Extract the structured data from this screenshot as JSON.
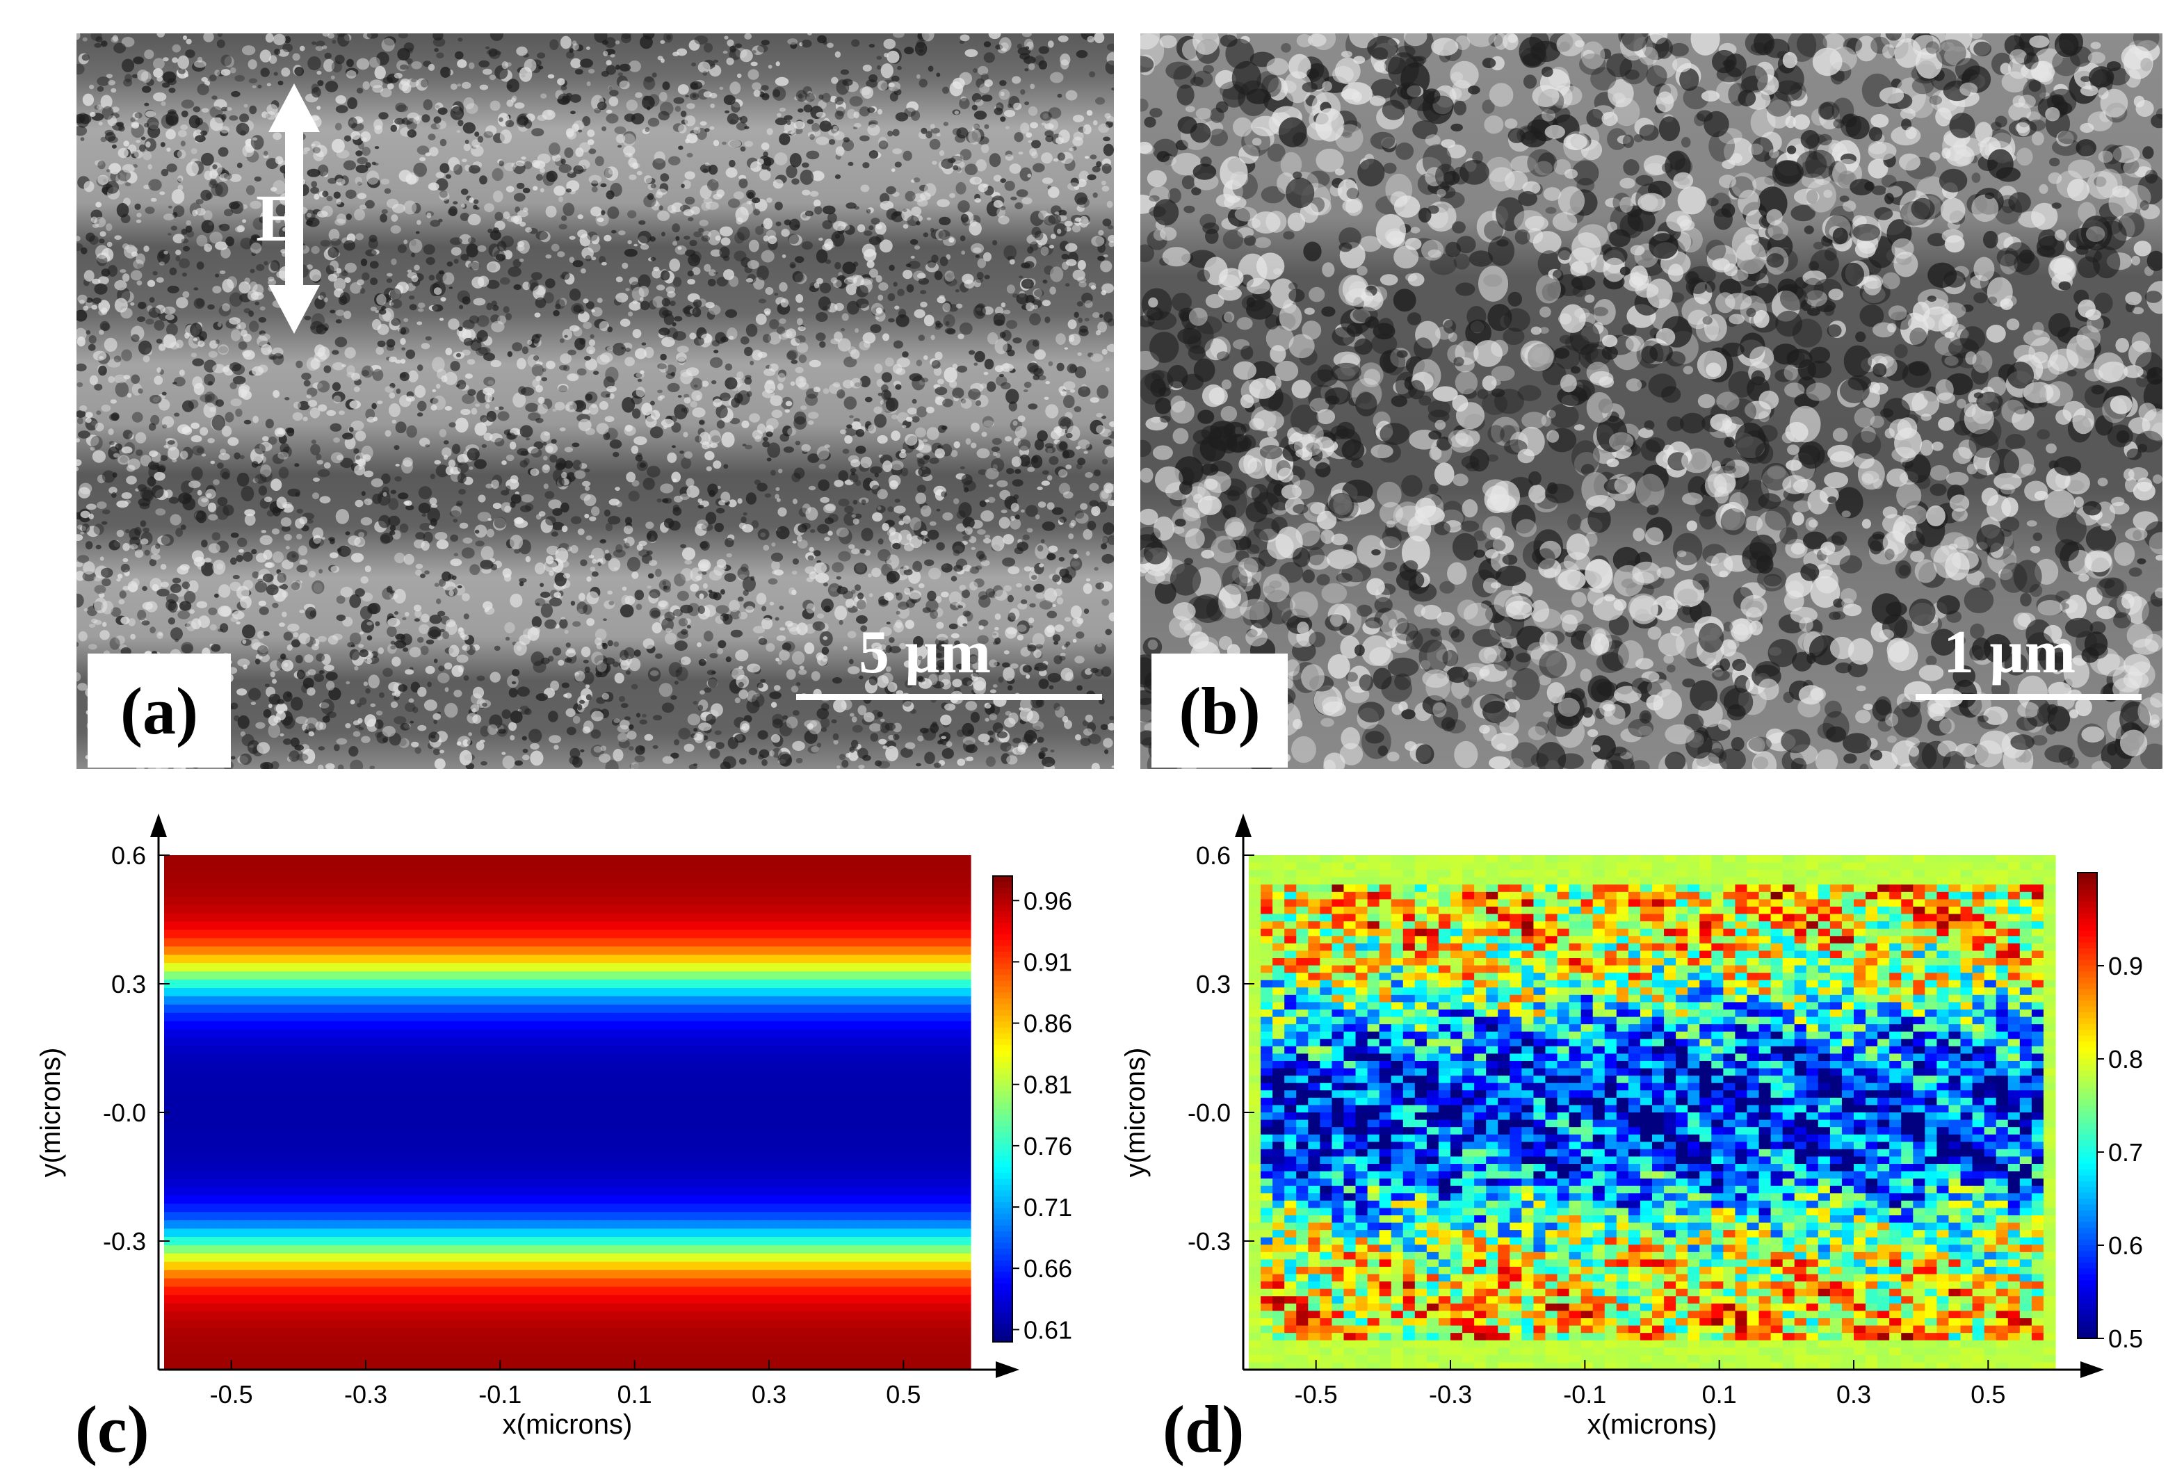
{
  "panels": {
    "a": {
      "label": "(a)",
      "scale_text": "5 µm",
      "field_label": "E"
    },
    "b": {
      "label": "(b)",
      "scale_text": "1 µm"
    },
    "c": {
      "label": "(c)"
    },
    "d": {
      "label": "(d)"
    }
  },
  "chart_data": [
    {
      "type": "heatmap",
      "panel": "c",
      "xlabel": "x(microns)",
      "ylabel": "y(microns)",
      "xlim": [
        -0.6,
        0.6
      ],
      "ylim": [
        -0.6,
        0.6
      ],
      "x_ticks": [
        "-0.5",
        "-0.3",
        "-0.1",
        "0.1",
        "0.3",
        "0.5"
      ],
      "x_tick_values": [
        -0.5,
        -0.3,
        -0.1,
        0.1,
        0.3,
        0.5
      ],
      "y_ticks": [
        "0.6",
        "0.3",
        "-0.0",
        "-0.3"
      ],
      "y_tick_values": [
        0.6,
        0.3,
        0.0,
        -0.3
      ],
      "colorbar_ticks": [
        "0.96",
        "0.91",
        "0.86",
        "0.81",
        "0.76",
        "0.71",
        "0.66",
        "0.61"
      ],
      "colorbar_tick_values": [
        0.96,
        0.91,
        0.86,
        0.81,
        0.76,
        0.71,
        0.66,
        0.61
      ],
      "value_range": [
        0.6,
        0.98
      ],
      "colormap": "jet",
      "description_profile": "high (~0.96) near y=±0.6, low (~0.61) around y=0, varies only along y"
    },
    {
      "type": "heatmap",
      "panel": "d",
      "xlabel": "x(microns)",
      "ylabel": "y(microns)",
      "xlim": [
        -0.6,
        0.6
      ],
      "ylim": [
        -0.6,
        0.6
      ],
      "x_ticks": [
        "-0.5",
        "-0.3",
        "-0.1",
        "0.1",
        "0.3",
        "0.5"
      ],
      "x_tick_values": [
        -0.5,
        -0.3,
        -0.1,
        0.1,
        0.3,
        0.5
      ],
      "y_ticks": [
        "0.6",
        "0.3",
        "-0.0",
        "-0.3"
      ],
      "y_tick_values": [
        0.6,
        0.3,
        0.0,
        -0.3
      ],
      "colorbar_ticks": [
        "0.9",
        "0.8",
        "0.7",
        "0.6",
        "0.5"
      ],
      "colorbar_tick_values": [
        0.9,
        0.8,
        0.7,
        0.6,
        0.5
      ],
      "value_range": [
        0.5,
        1.0
      ],
      "colormap": "jet",
      "description_profile": "noisy pixel map: high values near y=±0.4, low (~0.55) around y=0, uniform ~0.78 border"
    }
  ],
  "colors": {
    "background": "#ffffff",
    "sem_dark": "#3c3c3c",
    "sem_light": "#c8c8c8"
  }
}
